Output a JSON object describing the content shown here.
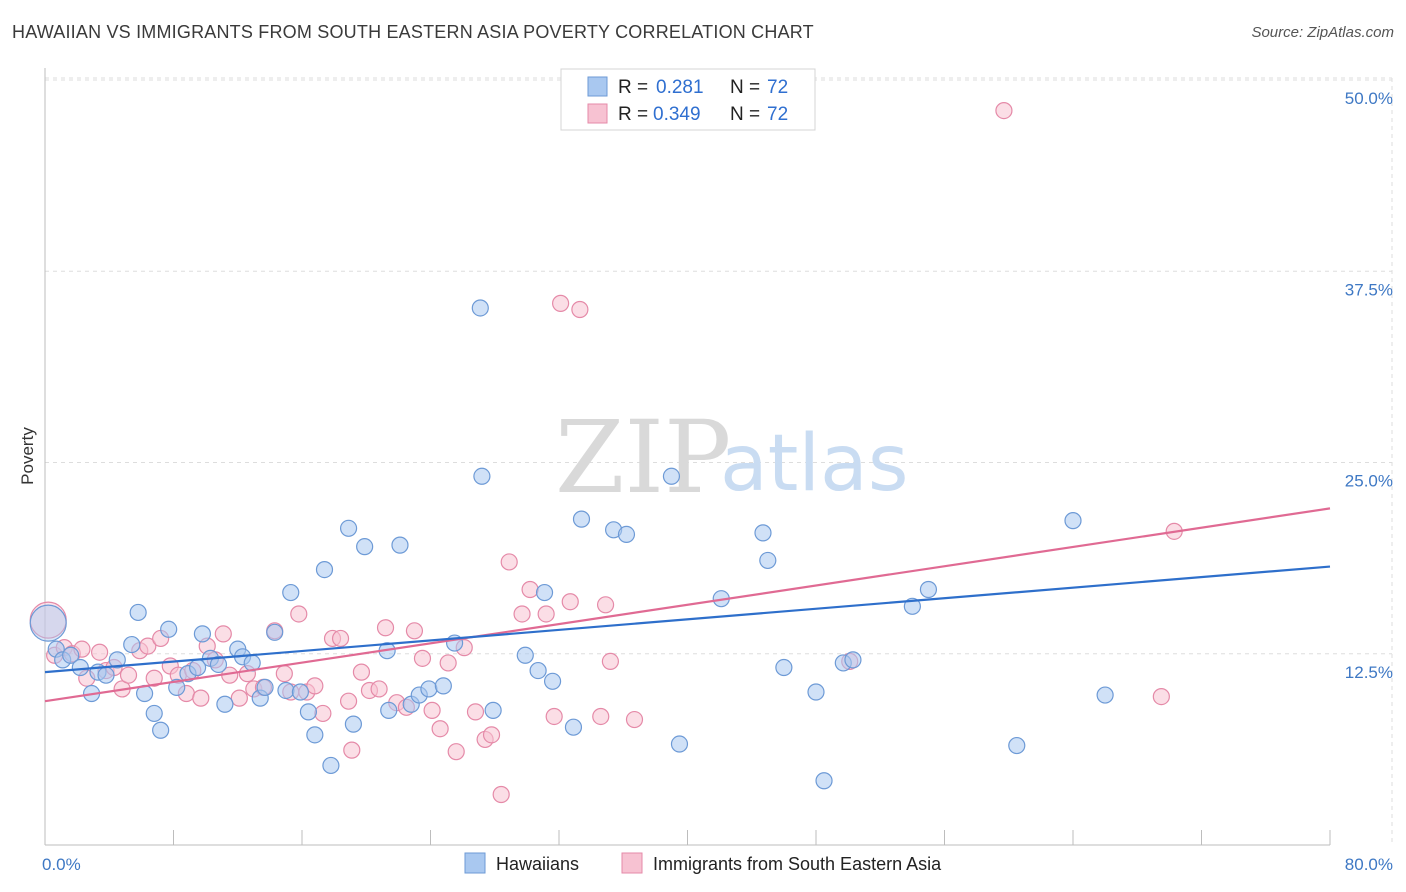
{
  "header": {
    "title": "HAWAIIAN VS IMMIGRANTS FROM SOUTH EASTERN ASIA POVERTY CORRELATION CHART",
    "source": "Source: ZipAtlas.com"
  },
  "watermark": {
    "zip": "ZIP",
    "atlas": "atlas"
  },
  "colors": {
    "blue_fill": "#a9c8f0",
    "blue_stroke": "#6d9ad6",
    "blue_line": "#2e6fcb",
    "pink_fill": "#f7c2d2",
    "pink_stroke": "#e58aa8",
    "pink_line": "#e06a93",
    "tick_label": "#3e78c4",
    "grid": "#dddddd"
  },
  "legend": {
    "rows": [
      {
        "r_label": "R =",
        "r_value": "0.281",
        "n_label": "N =",
        "n_value": "72"
      },
      {
        "r_label": "R =",
        "r_value": "0.349",
        "n_label": "N =",
        "n_value": "72"
      }
    ]
  },
  "chart_data": {
    "type": "scatter",
    "title": "HAWAIIAN VS IMMIGRANTS FROM SOUTH EASTERN ASIA POVERTY CORRELATION CHART",
    "xlabel": "",
    "ylabel": "Poverty",
    "xlim": [
      0,
      80
    ],
    "ylim": [
      0,
      50
    ],
    "x_tick_labels": [
      "0.0%",
      "80.0%"
    ],
    "y_ticks": [
      12.5,
      25.0,
      37.5,
      50.0
    ],
    "y_tick_labels": [
      "12.5%",
      "25.0%",
      "37.5%",
      "50.0%"
    ],
    "grid": true,
    "legend_position": "top-center",
    "series": [
      {
        "name": "Hawaiians",
        "r": 0.281,
        "n": 72,
        "trend": {
          "x": [
            0,
            80
          ],
          "y": [
            11.3,
            18.2
          ]
        },
        "points": [
          [
            0.2,
            14.5
          ],
          [
            0.7,
            12.8
          ],
          [
            1.1,
            12.1
          ],
          [
            1.6,
            12.4
          ],
          [
            2.2,
            11.6
          ],
          [
            2.9,
            9.9
          ],
          [
            3.3,
            11.3
          ],
          [
            3.8,
            11.1
          ],
          [
            4.5,
            12.1
          ],
          [
            5.4,
            13.1
          ],
          [
            5.8,
            15.2
          ],
          [
            6.2,
            9.9
          ],
          [
            6.8,
            8.6
          ],
          [
            7.2,
            7.5
          ],
          [
            7.7,
            14.1
          ],
          [
            8.2,
            10.3
          ],
          [
            8.9,
            11.2
          ],
          [
            9.5,
            11.6
          ],
          [
            9.8,
            13.8
          ],
          [
            10.3,
            12.2
          ],
          [
            10.8,
            11.8
          ],
          [
            11.2,
            9.2
          ],
          [
            12.0,
            12.8
          ],
          [
            12.3,
            12.3
          ],
          [
            12.9,
            11.9
          ],
          [
            13.4,
            9.6
          ],
          [
            13.7,
            10.3
          ],
          [
            14.3,
            13.9
          ],
          [
            15.0,
            10.1
          ],
          [
            15.3,
            16.5
          ],
          [
            15.9,
            10.0
          ],
          [
            16.4,
            8.7
          ],
          [
            16.8,
            7.2
          ],
          [
            17.4,
            18.0
          ],
          [
            17.8,
            5.2
          ],
          [
            18.9,
            20.7
          ],
          [
            19.2,
            7.9
          ],
          [
            19.9,
            19.5
          ],
          [
            21.3,
            12.7
          ],
          [
            21.4,
            8.8
          ],
          [
            22.1,
            19.6
          ],
          [
            22.8,
            9.2
          ],
          [
            23.3,
            9.8
          ],
          [
            23.9,
            10.2
          ],
          [
            24.8,
            10.4
          ],
          [
            25.5,
            13.2
          ],
          [
            27.1,
            35.1
          ],
          [
            27.2,
            24.1
          ],
          [
            27.9,
            8.8
          ],
          [
            29.9,
            12.4
          ],
          [
            30.7,
            11.4
          ],
          [
            31.1,
            16.5
          ],
          [
            31.6,
            10.7
          ],
          [
            32.9,
            7.7
          ],
          [
            33.4,
            21.3
          ],
          [
            35.4,
            20.6
          ],
          [
            36.2,
            20.3
          ],
          [
            39.0,
            24.1
          ],
          [
            39.5,
            6.6
          ],
          [
            42.1,
            16.1
          ],
          [
            44.7,
            20.4
          ],
          [
            45.0,
            18.6
          ],
          [
            46.0,
            11.6
          ],
          [
            48.0,
            10.0
          ],
          [
            48.5,
            4.2
          ],
          [
            49.7,
            11.9
          ],
          [
            50.3,
            12.1
          ],
          [
            54.0,
            15.6
          ],
          [
            55.0,
            16.7
          ],
          [
            60.5,
            6.5
          ],
          [
            64.0,
            21.2
          ],
          [
            66.0,
            9.8
          ]
        ]
      },
      {
        "name": "Immigrants from South Eastern Asia",
        "r": 0.349,
        "n": 72,
        "trend": {
          "x": [
            0,
            80
          ],
          "y": [
            9.4,
            22.0
          ]
        },
        "points": [
          [
            0.2,
            14.7
          ],
          [
            0.6,
            12.4
          ],
          [
            1.2,
            12.9
          ],
          [
            1.7,
            12.5
          ],
          [
            2.3,
            12.8
          ],
          [
            2.6,
            10.9
          ],
          [
            3.4,
            12.6
          ],
          [
            3.8,
            11.4
          ],
          [
            4.3,
            11.6
          ],
          [
            4.8,
            10.2
          ],
          [
            5.2,
            11.1
          ],
          [
            5.9,
            12.7
          ],
          [
            6.4,
            13.0
          ],
          [
            6.8,
            10.9
          ],
          [
            7.2,
            13.5
          ],
          [
            7.8,
            11.7
          ],
          [
            8.3,
            11.1
          ],
          [
            8.8,
            9.9
          ],
          [
            9.2,
            11.4
          ],
          [
            9.7,
            9.6
          ],
          [
            10.1,
            13.0
          ],
          [
            10.6,
            12.1
          ],
          [
            11.1,
            13.8
          ],
          [
            11.5,
            11.1
          ],
          [
            12.1,
            9.6
          ],
          [
            12.6,
            11.2
          ],
          [
            13.0,
            10.2
          ],
          [
            13.6,
            10.3
          ],
          [
            14.3,
            14.0
          ],
          [
            14.9,
            11.2
          ],
          [
            15.3,
            10.0
          ],
          [
            15.8,
            15.1
          ],
          [
            16.3,
            10.0
          ],
          [
            16.8,
            10.4
          ],
          [
            17.3,
            8.6
          ],
          [
            17.9,
            13.5
          ],
          [
            18.4,
            13.5
          ],
          [
            18.9,
            9.4
          ],
          [
            19.1,
            6.2
          ],
          [
            19.7,
            11.3
          ],
          [
            20.2,
            10.1
          ],
          [
            20.8,
            10.2
          ],
          [
            21.2,
            14.2
          ],
          [
            21.9,
            9.3
          ],
          [
            22.5,
            9.0
          ],
          [
            23.0,
            14.0
          ],
          [
            23.5,
            12.2
          ],
          [
            24.1,
            8.8
          ],
          [
            24.6,
            7.6
          ],
          [
            25.1,
            11.9
          ],
          [
            25.6,
            6.1
          ],
          [
            26.1,
            12.9
          ],
          [
            26.8,
            8.7
          ],
          [
            27.4,
            6.9
          ],
          [
            27.8,
            7.2
          ],
          [
            28.4,
            3.3
          ],
          [
            28.9,
            18.5
          ],
          [
            29.7,
            15.1
          ],
          [
            30.2,
            16.7
          ],
          [
            31.2,
            15.1
          ],
          [
            31.7,
            8.4
          ],
          [
            32.1,
            35.4
          ],
          [
            32.7,
            15.9
          ],
          [
            33.3,
            35.0
          ],
          [
            34.6,
            8.4
          ],
          [
            34.9,
            15.7
          ],
          [
            35.2,
            12.0
          ],
          [
            36.7,
            8.2
          ],
          [
            50.1,
            12.0
          ],
          [
            69.5,
            9.7
          ],
          [
            70.3,
            20.5
          ],
          [
            59.7,
            48.0
          ]
        ]
      }
    ]
  }
}
